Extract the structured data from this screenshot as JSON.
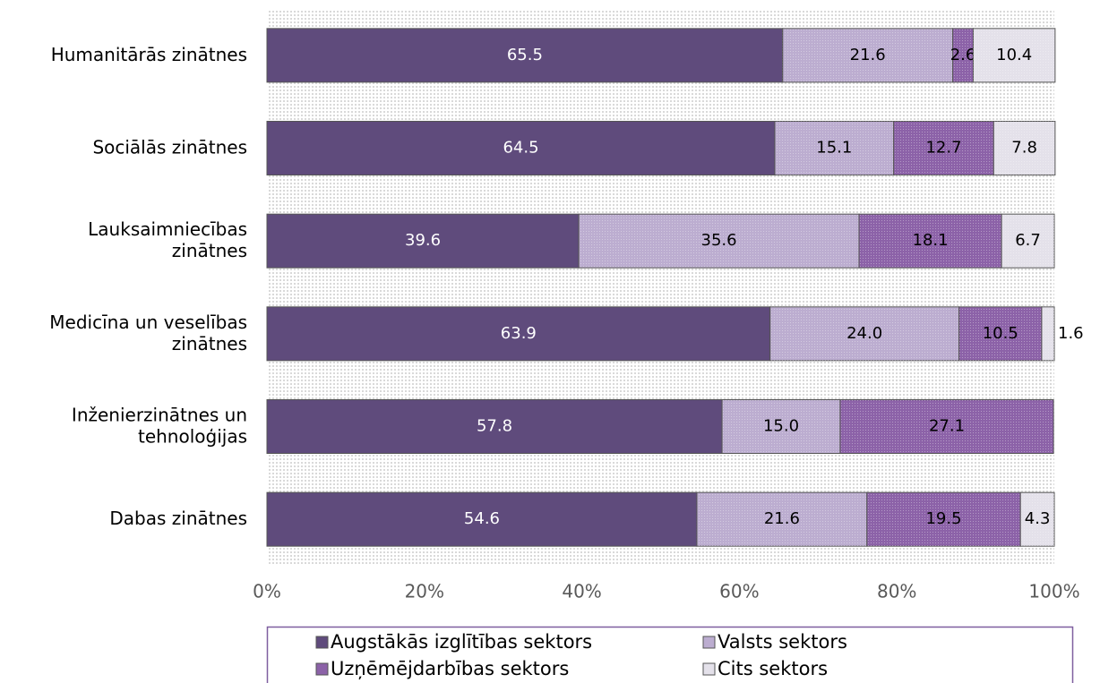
{
  "chart_data": {
    "type": "stacked_barh",
    "categories": [
      "Humanitārās zinātnes",
      "Sociālās zinātnes",
      "Lauksaimniecības zinātnes",
      "Medicīna un veselības zinātnes",
      "Inženierzinātnes un tehnoloģijas",
      "Dabas zinātnes"
    ],
    "series": [
      {
        "name": "Augstākās izglītības sektors",
        "color": "#5f4b7c",
        "label_color": "#ffffff",
        "values": [
          65.5,
          64.5,
          39.6,
          63.9,
          57.8,
          54.6
        ],
        "value_labels": [
          "65.5",
          "64.5",
          "39.6",
          "63.9",
          "57.8",
          "54.6"
        ]
      },
      {
        "name": "Valsts sektors",
        "color": "#bcadd0",
        "label_color": "#000000",
        "values": [
          21.6,
          15.1,
          35.6,
          24.0,
          15.0,
          21.6
        ],
        "value_labels": [
          "21.6",
          "15.1",
          "35.6",
          "24.0",
          "15.0",
          "21.6"
        ]
      },
      {
        "name": "Uzņēmējdarbības sektors",
        "color": "#8c62a8",
        "label_color": "#000000",
        "values": [
          2.6,
          12.7,
          18.1,
          10.5,
          27.1,
          19.5
        ],
        "value_labels": [
          "2.6",
          "12.7",
          "18.1",
          "10.5",
          "27.1",
          "19.5"
        ]
      },
      {
        "name": "Cits sektors",
        "color": "#e4e1ea",
        "label_color": "#000000",
        "values": [
          10.4,
          7.8,
          6.7,
          1.6,
          null,
          4.3
        ],
        "value_labels": [
          "10.4",
          "7.8",
          "6.7",
          "1.6",
          null,
          "4.3"
        ]
      }
    ],
    "xlim": [
      0,
      100
    ],
    "xticks": [
      {
        "value": 0,
        "label": "0%"
      },
      {
        "value": 20,
        "label": "20%"
      },
      {
        "value": 40,
        "label": "40%"
      },
      {
        "value": 60,
        "label": "60%"
      },
      {
        "value": 80,
        "label": "80%"
      },
      {
        "value": 100,
        "label": "100%"
      }
    ],
    "legend": "bottom"
  }
}
